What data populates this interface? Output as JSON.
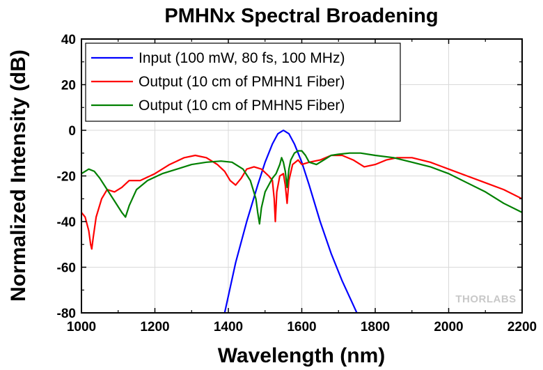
{
  "chart_data": {
    "type": "line",
    "title": "PMHNx Spectral Broadening",
    "xlabel": "Wavelength (nm)",
    "ylabel": "Normalized Intensity (dB)",
    "xlim": [
      1000,
      2200
    ],
    "ylim": [
      -80,
      40
    ],
    "xticks": [
      1000,
      1200,
      1400,
      1600,
      1800,
      2000,
      2200
    ],
    "yticks": [
      -80,
      -60,
      -40,
      -20,
      0,
      20,
      40
    ],
    "grid": true,
    "legend_position": "top-left",
    "watermark": "THORLABS",
    "series": [
      {
        "name": "Input (100 mW, 80 fs, 100 MHz)",
        "color": "#0000ff",
        "x": [
          1390,
          1420,
          1450,
          1480,
          1500,
          1520,
          1535,
          1550,
          1565,
          1580,
          1600,
          1620,
          1650,
          1680,
          1710,
          1750
        ],
        "y": [
          -80,
          -58,
          -40,
          -24,
          -14,
          -6,
          -1.5,
          0,
          -1.5,
          -6,
          -14,
          -24,
          -40,
          -54,
          -66,
          -80
        ]
      },
      {
        "name": "Output (10 cm of PMHN1 Fiber)",
        "color": "#ff0000",
        "x": [
          1000,
          1010,
          1020,
          1025,
          1028,
          1032,
          1040,
          1055,
          1070,
          1090,
          1110,
          1130,
          1160,
          1200,
          1240,
          1280,
          1310,
          1340,
          1370,
          1390,
          1405,
          1420,
          1435,
          1450,
          1470,
          1490,
          1510,
          1520,
          1525,
          1528,
          1532,
          1540,
          1550,
          1555,
          1560,
          1565,
          1575,
          1590,
          1600,
          1620,
          1650,
          1680,
          1710,
          1740,
          1770,
          1800,
          1830,
          1860,
          1900,
          1950,
          2000,
          2050,
          2100,
          2150,
          2200
        ],
        "y": [
          -36,
          -38,
          -44,
          -50,
          -52,
          -47,
          -38,
          -30,
          -26,
          -27,
          -25,
          -22,
          -22,
          -19,
          -15,
          -12,
          -11,
          -12,
          -15,
          -18,
          -22,
          -24,
          -21,
          -17,
          -16,
          -17,
          -20,
          -22,
          -30,
          -40,
          -27,
          -20,
          -19,
          -24,
          -32,
          -22,
          -15,
          -13,
          -15,
          -14,
          -13,
          -11,
          -11,
          -13,
          -16,
          -15,
          -13,
          -12,
          -12,
          -14,
          -17,
          -20,
          -23,
          -26,
          -30
        ]
      },
      {
        "name": "Output (10 cm of PMHN5 Fiber)",
        "color": "#008000",
        "x": [
          1000,
          1010,
          1020,
          1035,
          1050,
          1070,
          1090,
          1110,
          1120,
          1130,
          1150,
          1180,
          1220,
          1260,
          1300,
          1340,
          1380,
          1410,
          1440,
          1460,
          1475,
          1480,
          1485,
          1490,
          1500,
          1510,
          1520,
          1530,
          1540,
          1545,
          1550,
          1555,
          1560,
          1565,
          1570,
          1580,
          1590,
          1600,
          1610,
          1620,
          1640,
          1660,
          1680,
          1700,
          1730,
          1760,
          1800,
          1850,
          1900,
          1950,
          2000,
          2050,
          2100,
          2150,
          2200
        ],
        "y": [
          -19,
          -18,
          -17,
          -18,
          -21,
          -26,
          -31,
          -36,
          -38,
          -33,
          -26,
          -22,
          -19,
          -17,
          -15,
          -14,
          -13.5,
          -14,
          -17,
          -22,
          -30,
          -36,
          -41,
          -34,
          -27,
          -24,
          -21,
          -19,
          -15,
          -12,
          -14,
          -18,
          -25,
          -17,
          -13,
          -10,
          -9,
          -9,
          -11,
          -14,
          -15,
          -13,
          -11,
          -10.5,
          -10,
          -10,
          -11,
          -12,
          -14,
          -16,
          -19,
          -23,
          -27,
          -32,
          -36
        ]
      }
    ]
  }
}
